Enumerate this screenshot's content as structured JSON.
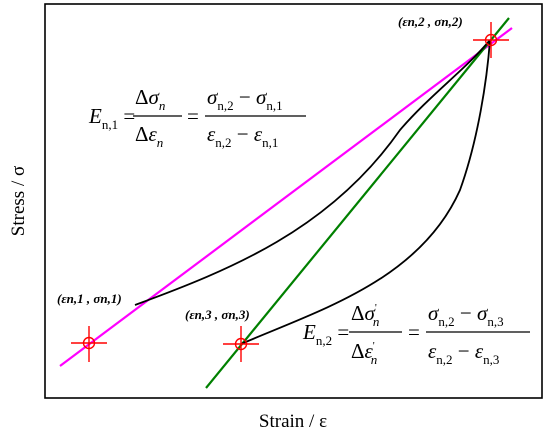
{
  "figure": {
    "xlabel": "Strain / ε",
    "ylabel": "Stress / σ"
  },
  "points": {
    "p1": {
      "label": "(εn,1 , σn,1)"
    },
    "p2": {
      "label": "(εn,2 , σn,2)"
    },
    "p3": {
      "label": "(εn,3 , σn,3)"
    }
  },
  "equations": {
    "e1": "E_{n,1} = Δσ_n / Δε_n = (σ_{n,2} − σ_{n,1}) / (ε_{n,2} − ε_{n,1})",
    "e2": "E_{n,2} = Δσ'_n / Δε'_n = (σ_{n,2} − σ_{n,3}) / (ε_{n,2} − ε_{n,3})"
  },
  "colors": {
    "secant_line": "#ff00ff",
    "tangent_line": "#008000",
    "curve": "#000000",
    "marker": "#ff0000"
  }
}
